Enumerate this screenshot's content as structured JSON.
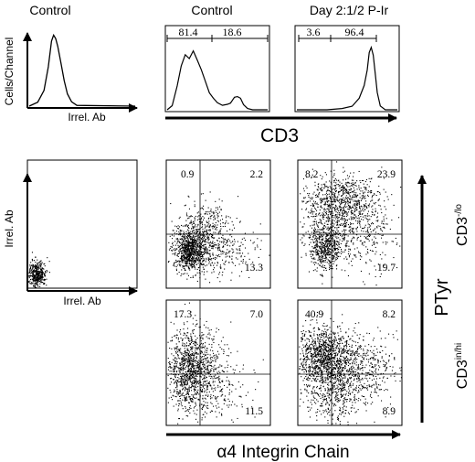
{
  "chart_data": [
    {
      "type": "histogram",
      "title": "Control",
      "ylabel": "Cells/Channel",
      "xlabel": "Irrel. Ab",
      "curve": [
        [
          0.0,
          0.0
        ],
        [
          0.08,
          0.05
        ],
        [
          0.14,
          0.22
        ],
        [
          0.18,
          0.55
        ],
        [
          0.21,
          0.88
        ],
        [
          0.23,
          0.97
        ],
        [
          0.25,
          0.93
        ],
        [
          0.27,
          0.8
        ],
        [
          0.3,
          0.58
        ],
        [
          0.33,
          0.35
        ],
        [
          0.36,
          0.18
        ],
        [
          0.4,
          0.05
        ],
        [
          0.45,
          0.01
        ],
        [
          1.0,
          0.0
        ]
      ]
    },
    {
      "type": "histogram",
      "title": "Control",
      "xlabel": "CD3",
      "gates": [
        {
          "value": "81.4"
        },
        {
          "value": "18.6"
        }
      ],
      "curve": [
        [
          0.0,
          0.0
        ],
        [
          0.05,
          0.06
        ],
        [
          0.1,
          0.38
        ],
        [
          0.14,
          0.7
        ],
        [
          0.18,
          0.85
        ],
        [
          0.22,
          0.8
        ],
        [
          0.26,
          0.93
        ],
        [
          0.3,
          0.76
        ],
        [
          0.34,
          0.62
        ],
        [
          0.38,
          0.45
        ],
        [
          0.42,
          0.28
        ],
        [
          0.46,
          0.17
        ],
        [
          0.5,
          0.11
        ],
        [
          0.55,
          0.08
        ],
        [
          0.6,
          0.07
        ],
        [
          0.63,
          0.1
        ],
        [
          0.67,
          0.2
        ],
        [
          0.7,
          0.22
        ],
        [
          0.73,
          0.17
        ],
        [
          0.76,
          0.08
        ],
        [
          0.8,
          0.02
        ],
        [
          0.85,
          0.0
        ],
        [
          1.0,
          0.0
        ]
      ]
    },
    {
      "type": "histogram",
      "title": "Day 2:1/2 P-Ir",
      "xlabel": "CD3",
      "gates": [
        {
          "value": "3.6"
        },
        {
          "value": "96.4"
        }
      ],
      "curve": [
        [
          0.0,
          0.0
        ],
        [
          0.3,
          0.0
        ],
        [
          0.45,
          0.02
        ],
        [
          0.55,
          0.07
        ],
        [
          0.62,
          0.17
        ],
        [
          0.67,
          0.38
        ],
        [
          0.7,
          0.63
        ],
        [
          0.72,
          0.88
        ],
        [
          0.74,
          0.97
        ],
        [
          0.76,
          0.86
        ],
        [
          0.78,
          0.58
        ],
        [
          0.8,
          0.26
        ],
        [
          0.83,
          0.06
        ],
        [
          0.88,
          0.0
        ],
        [
          1.0,
          0.0
        ]
      ]
    },
    {
      "type": "scatter",
      "xlabel": "Irrel. Ab",
      "ylabel": "Irrel. Ab"
    },
    {
      "type": "scatter",
      "title": "Control",
      "row": "CD3-/lo",
      "quadrants": {
        "upper_left": "0.9",
        "upper_right": "2.2",
        "lower_left": "",
        "lower_right": "13.3"
      }
    },
    {
      "type": "scatter",
      "title": "Day 2:1/2 P-Ir",
      "row": "CD3-/lo",
      "quadrants": {
        "upper_left": "8.2",
        "upper_right": "23.9",
        "lower_left": "",
        "lower_right": "19.7"
      }
    },
    {
      "type": "scatter",
      "title": "Control",
      "row": "CD3in/hi",
      "quadrants": {
        "upper_left": "17.3",
        "upper_right": "7.0",
        "lower_left": "",
        "lower_right": "11.5"
      }
    },
    {
      "type": "scatter",
      "title": "Day 2:1/2 P-Ir",
      "row": "CD3in/hi",
      "quadrants": {
        "upper_left": "40.9",
        "upper_right": "8.2",
        "lower_left": "",
        "lower_right": "8.9"
      }
    }
  ],
  "labels": {
    "col_title_1": "Control",
    "col_title_2": "Control",
    "col_title_3": "Day 2:1/2 P-Ir",
    "hist_ylabel": "Cells/Channel",
    "hist_xlabel_1": "Irrel. Ab",
    "hist_xlabel_cd3": "CD3",
    "dot_ylabel_1": "Irrel. Ab",
    "dot_xlabel_1": "Irrel. Ab",
    "dot_xlabel_main": "α4 Integrin Chain",
    "dot_ylabel_main": "PTyr",
    "row_label_top_main": "CD3",
    "row_label_top_sup": "-/lo",
    "row_label_bottom_main": "CD3",
    "row_label_bottom_sup": "in/hi"
  },
  "colors": {
    "ink": "#000000",
    "background": "#ffffff"
  }
}
